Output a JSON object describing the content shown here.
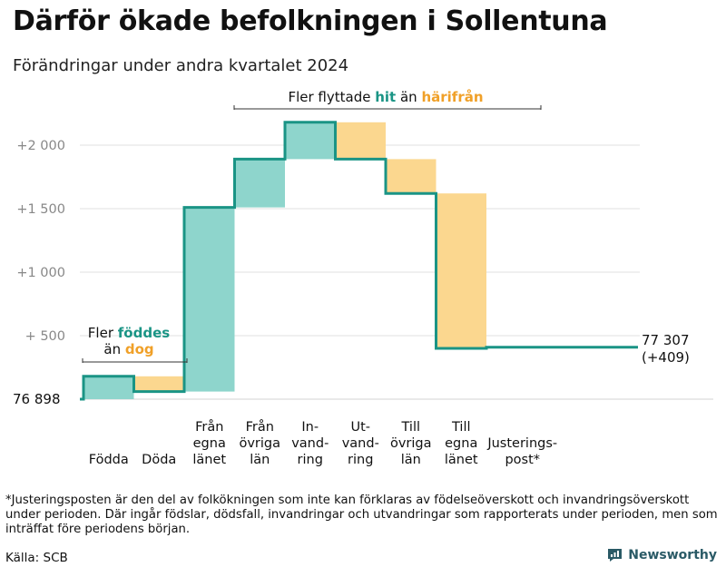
{
  "header": {
    "title": "Därför ökade befolkningen i Sollentuna",
    "subtitle": "Förändringar under andra kvartalet 2024"
  },
  "footer": {
    "footnote": "*Justeringsposten är den del av folkökningen som inte kan förklaras av födelseöverskott och invandringsöverskott under perioden. Där ingår födslar, dödsfall, invandringar och utvandringar som rapporterats under perioden, men som inträffat före periodens början.",
    "source": "Källa: SCB",
    "brand": "Newsworthy"
  },
  "colors": {
    "teal": "#1a9485",
    "teal_fill": "#8ed5cc",
    "orange": "#f0a028",
    "orange_fill": "#fbd78f",
    "grid": "#e2e2e2",
    "tick_text": "#888888"
  },
  "chart_data": {
    "type": "waterfall",
    "title": "Därför ökade befolkningen i Sollentuna",
    "subtitle": "Förändringar under andra kvartalet 2024",
    "start_value": 76898,
    "start_label": "76  898",
    "end_label_1": "77 307",
    "end_label_2": "(+409)",
    "ylim": [
      0,
      2150
    ],
    "y_ticks": [
      {
        "value": 500,
        "label": "+  500"
      },
      {
        "value": 1000,
        "label": "+1  000"
      },
      {
        "value": 1500,
        "label": "+1  500"
      },
      {
        "value": 2000,
        "label": "+2  000"
      }
    ],
    "steps": [
      {
        "label_lines": [
          "Födda"
        ],
        "from": 0,
        "to": 180,
        "kind": "increase"
      },
      {
        "label_lines": [
          "Döda"
        ],
        "from": 180,
        "to": 60,
        "kind": "decrease"
      },
      {
        "label_lines": [
          "Från",
          "egna",
          "länet"
        ],
        "from": 60,
        "to": 1510,
        "kind": "increase"
      },
      {
        "label_lines": [
          "Från",
          "övriga",
          "län"
        ],
        "from": 1510,
        "to": 1890,
        "kind": "increase"
      },
      {
        "label_lines": [
          "In-",
          "vand-",
          "ring"
        ],
        "from": 1890,
        "to": 2180,
        "kind": "increase"
      },
      {
        "label_lines": [
          "Ut-",
          "vand-",
          "ring"
        ],
        "from": 2180,
        "to": 1890,
        "kind": "decrease"
      },
      {
        "label_lines": [
          "Till",
          "övriga",
          "län"
        ],
        "from": 1890,
        "to": 1620,
        "kind": "decrease"
      },
      {
        "label_lines": [
          "Till",
          "egna",
          "länet"
        ],
        "from": 1620,
        "to": 400,
        "kind": "decrease"
      },
      {
        "label_lines": [
          "Justerings-",
          "post*"
        ],
        "from": 400,
        "to": 409,
        "kind": "adjustment"
      }
    ],
    "annotations": {
      "born_line1_prefix": "Fler ",
      "born_line1_highlight": "föddes",
      "born_line2_prefix": "än ",
      "born_line2_highlight": "dog",
      "moved_prefix": "Fler flyttade ",
      "moved_highlight1": "hit",
      "moved_middle": "  än ",
      "moved_highlight2": "härifrån"
    }
  }
}
